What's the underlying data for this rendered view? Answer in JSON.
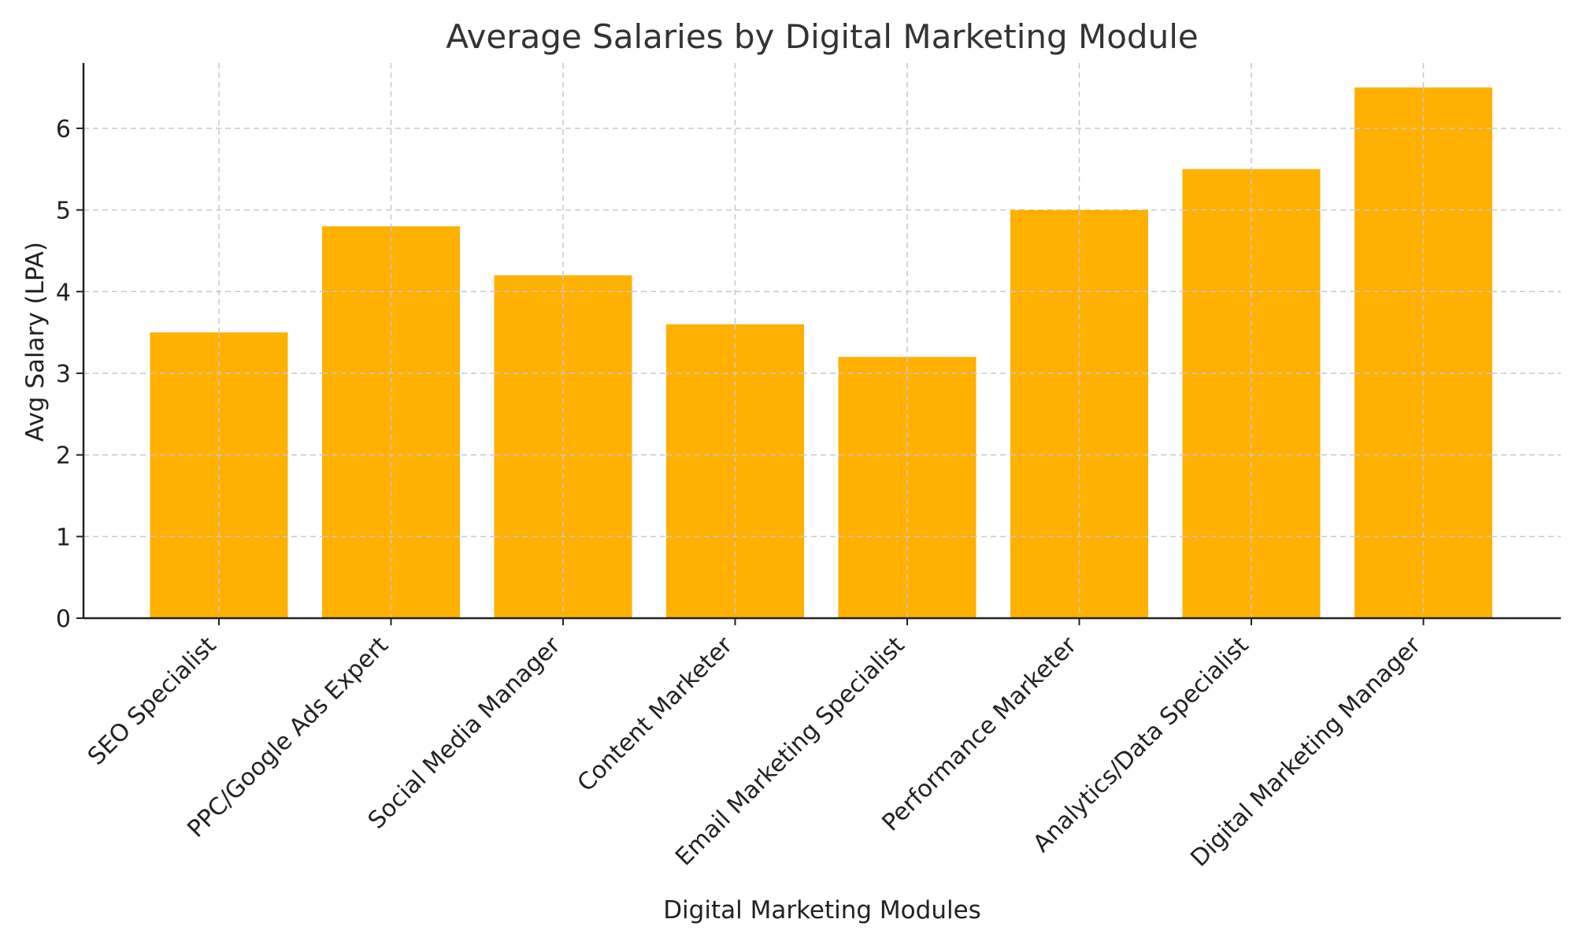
{
  "chart_data": {
    "type": "bar",
    "title": "Average Salaries by Digital Marketing Module",
    "xlabel": "Digital Marketing Modules",
    "ylabel": "Avg Salary (LPA)",
    "categories": [
      "SEO Specialist",
      "PPC/Google Ads Expert",
      "Social Media Manager",
      "Content Marketer",
      "Email Marketing Specialist",
      "Performance Marketer",
      "Analytics/Data Specialist",
      "Digital Marketing Manager"
    ],
    "values": [
      3.5,
      4.8,
      4.2,
      3.6,
      3.2,
      5.0,
      5.5,
      6.5
    ],
    "yticks": [
      "0",
      "1",
      "2",
      "3",
      "4",
      "5",
      "6"
    ],
    "ylim": [
      0,
      6.8
    ],
    "grid": true,
    "bar_color": "#FFB000"
  }
}
